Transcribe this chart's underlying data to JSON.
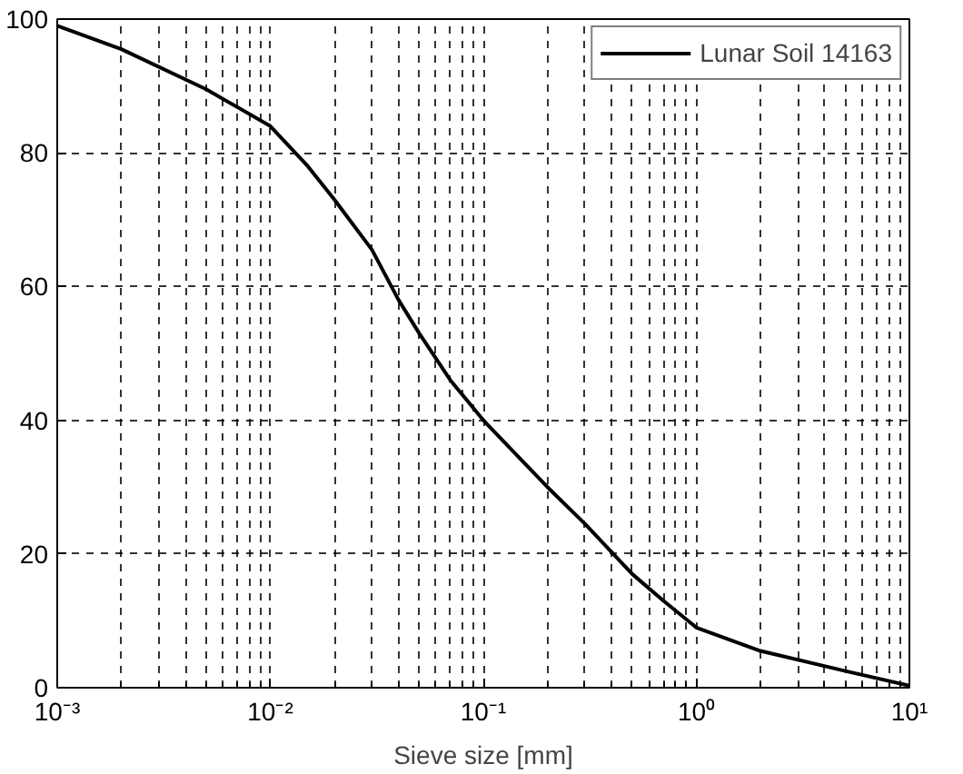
{
  "chart_data": {
    "type": "line",
    "xlabel": "Sieve size [mm]",
    "log": "x",
    "grid": true,
    "legend": "top right",
    "line_style": "solid",
    "marker": "none",
    "xlim": [
      0.001,
      10
    ],
    "xticks": [
      {
        "value": 0.001,
        "label": "10⁻³"
      },
      {
        "value": 0.01,
        "label": "10⁻²"
      },
      {
        "value": 0.1,
        "label": "10⁻¹"
      },
      {
        "value": 1,
        "label": "10⁰"
      },
      {
        "value": 10,
        "label": "10¹"
      }
    ],
    "ylim": [
      0,
      100
    ],
    "yticks": [
      0,
      20,
      40,
      60,
      80,
      100
    ],
    "x": [
      0.001,
      0.002,
      0.005,
      0.01,
      0.015,
      0.02,
      0.03,
      0.04,
      0.05,
      0.07,
      0.1,
      0.2,
      0.3,
      0.5,
      0.7,
      1,
      2,
      5,
      10
    ],
    "series": [
      {
        "name": "Lunar Soil 14163",
        "color": "#000000",
        "values": [
          99,
          95.5,
          89.5,
          84,
          78,
          73,
          65.5,
          58,
          53,
          46,
          40,
          30,
          24.5,
          17,
          13,
          9,
          5.5,
          2.5,
          0.3
        ]
      }
    ]
  }
}
